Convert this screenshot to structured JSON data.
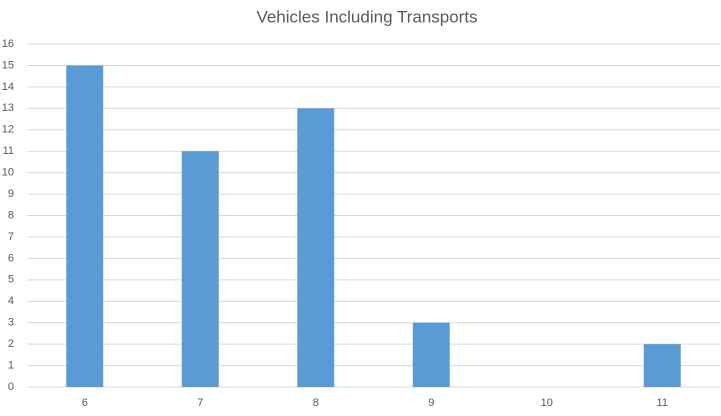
{
  "chart_data": {
    "type": "bar",
    "title": "Vehicles Including Transports",
    "categories": [
      "6",
      "7",
      "8",
      "9",
      "10",
      "11"
    ],
    "values": [
      15,
      11,
      13,
      3,
      0,
      2
    ],
    "color": "#5b9bd5",
    "ylim": [
      0,
      16
    ],
    "yticks": [
      0,
      1,
      2,
      3,
      4,
      5,
      6,
      7,
      8,
      9,
      10,
      11,
      12,
      13,
      14,
      15,
      16
    ],
    "grid": true
  }
}
